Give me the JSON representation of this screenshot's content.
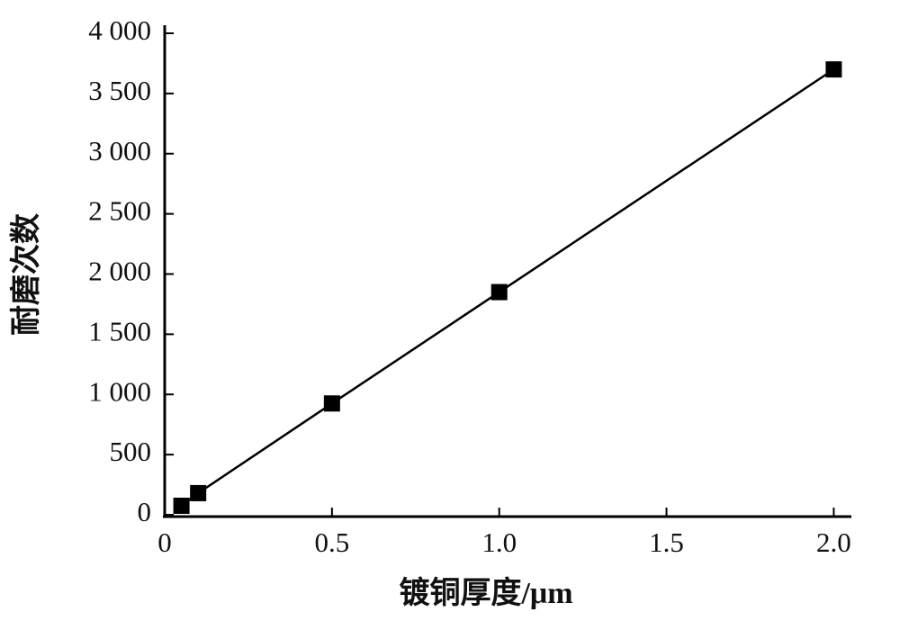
{
  "chart_data": {
    "type": "line",
    "x_label": "镀铜厚度/μm",
    "y_label": "耐磨次数",
    "x": [
      0.05,
      0.1,
      0.5,
      1.0,
      2.0
    ],
    "series": [
      {
        "color": "#000000",
        "values": [
          75,
          180,
          925,
          1850,
          3700
        ]
      }
    ],
    "xlim": [
      0,
      2.05
    ],
    "xticks": [
      0,
      0.5,
      {
        "value": 1,
        "label": "1.0"
      },
      1.5,
      {
        "value": 2,
        "label": "2.0"
      }
    ],
    "ylim": [
      0,
      4000
    ],
    "yticks": [
      0,
      500,
      {
        "value": 1000,
        "label": "1 000"
      },
      {
        "value": 1500,
        "label": "1 500"
      },
      {
        "value": 2000,
        "label": "2 000"
      },
      {
        "value": 2500,
        "label": "2 500"
      },
      {
        "value": 3000,
        "label": "3 000"
      },
      {
        "value": 3500,
        "label": "3 500"
      },
      {
        "value": 4000,
        "label": "4 000"
      }
    ],
    "grid": false
  }
}
